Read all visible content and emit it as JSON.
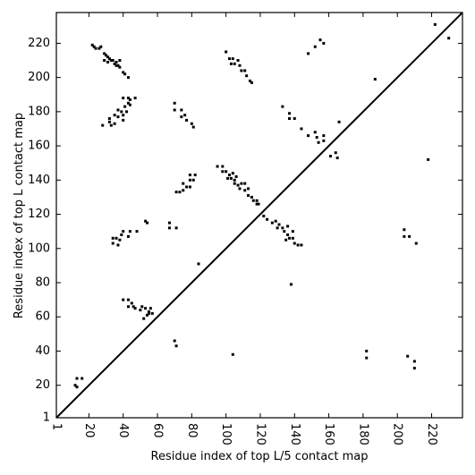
{
  "chart_data": {
    "type": "scatter",
    "xlabel": "Residue index of top L/5 contact map",
    "ylabel": "Residue index of top L contact map",
    "xlim": [
      1,
      238
    ],
    "ylim": [
      1,
      238
    ],
    "xticks": [
      1,
      20,
      40,
      60,
      80,
      100,
      120,
      140,
      160,
      180,
      200,
      220
    ],
    "yticks": [
      1,
      20,
      40,
      60,
      80,
      100,
      120,
      140,
      160,
      180,
      200,
      220
    ],
    "color": "#000000",
    "x": [
      22,
      23,
      24,
      26,
      27,
      29,
      30,
      31,
      32,
      33,
      34,
      35,
      36,
      37,
      38,
      40,
      41,
      43,
      29,
      31,
      36,
      38,
      40,
      43,
      44,
      47,
      43,
      41,
      44,
      37,
      39,
      42,
      35,
      37,
      40,
      32,
      32,
      35,
      40,
      28,
      33,
      70,
      70,
      74,
      76,
      74,
      77,
      80,
      81,
      40,
      44,
      48,
      34,
      36,
      39,
      34,
      37,
      38,
      43,
      53,
      54,
      67,
      67,
      71,
      40,
      43,
      45,
      43,
      46,
      47,
      51,
      50,
      53,
      55,
      55,
      57,
      54,
      52,
      56,
      13,
      16,
      12,
      13,
      84,
      70,
      71,
      95,
      98,
      98,
      100,
      102,
      104,
      101,
      103,
      105,
      106,
      105,
      107,
      109,
      111,
      108,
      111,
      113,
      113,
      115,
      116,
      118,
      118,
      119,
      79,
      82,
      79,
      81,
      75,
      77,
      79,
      73,
      71,
      75,
      100,
      102,
      104,
      103,
      105,
      107,
      108,
      109,
      111,
      112,
      114,
      115,
      122,
      124,
      127,
      129,
      131,
      130,
      133,
      134,
      136,
      137,
      139,
      140,
      142,
      144,
      136,
      139,
      135,
      138,
      133,
      137,
      140,
      137,
      144,
      148,
      152,
      153,
      154,
      157,
      157,
      161,
      164,
      165,
      166,
      155,
      157,
      152,
      148,
      187,
      218,
      222,
      230,
      104,
      182,
      182,
      204,
      204,
      207,
      211,
      206,
      210,
      210
    ],
    "y": [
      219,
      218,
      217,
      217,
      218,
      214,
      213,
      212,
      211,
      210,
      210,
      208,
      207,
      207,
      206,
      203,
      202,
      200,
      210,
      209,
      209,
      210,
      188,
      188,
      187,
      188,
      185,
      183,
      184,
      181,
      180,
      180,
      178,
      177,
      178,
      176,
      174,
      173,
      175,
      172,
      172,
      185,
      181,
      181,
      178,
      177,
      175,
      173,
      171,
      110,
      110,
      110,
      106,
      106,
      108,
      103,
      102,
      105,
      107,
      116,
      115,
      115,
      112,
      112,
      70,
      70,
      68,
      66,
      66,
      65,
      66,
      64,
      65,
      63,
      62,
      62,
      61,
      59,
      65,
      24,
      24,
      20,
      19,
      91,
      46,
      43,
      148,
      148,
      145,
      145,
      143,
      144,
      141,
      141,
      140,
      142,
      138,
      137,
      138,
      138,
      135,
      134,
      135,
      131,
      130,
      128,
      128,
      126,
      126,
      143,
      143,
      140,
      140,
      138,
      136,
      136,
      133,
      133,
      134,
      215,
      211,
      211,
      208,
      208,
      210,
      207,
      204,
      204,
      201,
      198,
      197,
      119,
      117,
      115,
      116,
      114,
      112,
      112,
      110,
      108,
      106,
      106,
      103,
      102,
      102,
      113,
      110,
      105,
      79,
      183,
      179,
      176,
      176,
      170,
      166,
      168,
      165,
      162,
      163,
      166,
      154,
      156,
      153,
      174,
      222,
      220,
      218,
      214,
      199,
      152,
      231,
      223,
      38,
      40,
      36,
      111,
      107,
      107,
      103,
      37,
      34,
      30
    ]
  }
}
